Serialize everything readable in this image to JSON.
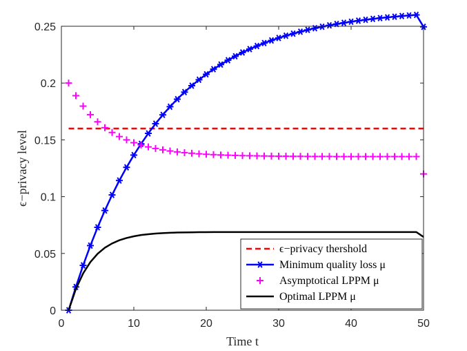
{
  "chart_data": {
    "type": "line",
    "xlabel": "Time t",
    "ylabel": "ϵ−privacy level",
    "xlim": [
      0,
      50
    ],
    "ylim": [
      0,
      0.25
    ],
    "xticks": [
      "0",
      "10",
      "20",
      "30",
      "40",
      "50"
    ],
    "yticks": [
      "0",
      "0.05",
      "0.1",
      "0.15",
      "0.2",
      "0.25"
    ],
    "grid": false,
    "legend_position": "bottom-right",
    "x": [
      1,
      2,
      3,
      4,
      5,
      6,
      7,
      8,
      9,
      10,
      11,
      12,
      13,
      14,
      15,
      16,
      17,
      18,
      19,
      20,
      21,
      22,
      23,
      24,
      25,
      26,
      27,
      28,
      29,
      30,
      31,
      32,
      33,
      34,
      35,
      36,
      37,
      38,
      39,
      40,
      41,
      42,
      43,
      44,
      45,
      46,
      47,
      48,
      49,
      50
    ],
    "series": [
      {
        "name": "ϵ−privacy thershold",
        "color": "#ff0000",
        "style": "dashed",
        "values": [
          0.16,
          0.16,
          0.16,
          0.16,
          0.16,
          0.16,
          0.16,
          0.16,
          0.16,
          0.16,
          0.16,
          0.16,
          0.16,
          0.16,
          0.16,
          0.16,
          0.16,
          0.16,
          0.16,
          0.16,
          0.16,
          0.16,
          0.16,
          0.16,
          0.16,
          0.16,
          0.16,
          0.16,
          0.16,
          0.16,
          0.16,
          0.16,
          0.16,
          0.16,
          0.16,
          0.16,
          0.16,
          0.16,
          0.16,
          0.16,
          0.16,
          0.16,
          0.16,
          0.16,
          0.16,
          0.16,
          0.16,
          0.16,
          0.16,
          0.16
        ]
      },
      {
        "name": "Minimum quality loss μ",
        "color": "#0000ff",
        "style": "solid",
        "marker": "asterisk",
        "values": [
          0.0,
          0.0205,
          0.0395,
          0.0569,
          0.073,
          0.0878,
          0.1015,
          0.1142,
          0.1258,
          0.1366,
          0.1465,
          0.1557,
          0.1642,
          0.172,
          0.1792,
          0.1858,
          0.192,
          0.1977,
          0.2029,
          0.2077,
          0.2122,
          0.2163,
          0.2201,
          0.2236,
          0.2269,
          0.2299,
          0.2326,
          0.2352,
          0.2375,
          0.2397,
          0.2417,
          0.2435,
          0.2452,
          0.2468,
          0.2483,
          0.2496,
          0.2508,
          0.252,
          0.253,
          0.254,
          0.2549,
          0.2557,
          0.2565,
          0.2572,
          0.2578,
          0.2584,
          0.259,
          0.2595,
          0.26,
          0.2495
        ]
      },
      {
        "name": "Asymptotical LPPM μ",
        "color": "#ff00ff",
        "style": "none",
        "marker": "plus",
        "values": [
          0.2,
          0.1889,
          0.1797,
          0.1722,
          0.1659,
          0.1607,
          0.1565,
          0.1529,
          0.15,
          0.1475,
          0.1455,
          0.1438,
          0.1424,
          0.1412,
          0.1402,
          0.1394,
          0.1387,
          0.1382,
          0.1377,
          0.1373,
          0.137,
          0.1367,
          0.1365,
          0.1363,
          0.1361,
          0.136,
          0.1359,
          0.1358,
          0.1357,
          0.1356,
          0.1356,
          0.1355,
          0.1355,
          0.1354,
          0.1354,
          0.1354,
          0.1354,
          0.1353,
          0.1353,
          0.1353,
          0.1353,
          0.1353,
          0.1353,
          0.1353,
          0.1353,
          0.1353,
          0.1353,
          0.1353,
          0.1353,
          0.12
        ]
      },
      {
        "name": "Optimal LPPM μ",
        "color": "#000000",
        "style": "solid",
        "values": [
          0.0,
          0.0187,
          0.0324,
          0.0424,
          0.0497,
          0.055,
          0.0588,
          0.0616,
          0.0636,
          0.0651,
          0.0662,
          0.0669,
          0.0675,
          0.0679,
          0.0682,
          0.0684,
          0.0685,
          0.0686,
          0.0687,
          0.0687,
          0.0688,
          0.0688,
          0.0688,
          0.0688,
          0.0688,
          0.0688,
          0.0688,
          0.0688,
          0.0688,
          0.0688,
          0.0688,
          0.0688,
          0.0688,
          0.0688,
          0.0688,
          0.0688,
          0.0688,
          0.0688,
          0.0688,
          0.0688,
          0.0688,
          0.0688,
          0.0688,
          0.0688,
          0.0688,
          0.0688,
          0.0688,
          0.0688,
          0.0688,
          0.0645
        ]
      }
    ]
  }
}
